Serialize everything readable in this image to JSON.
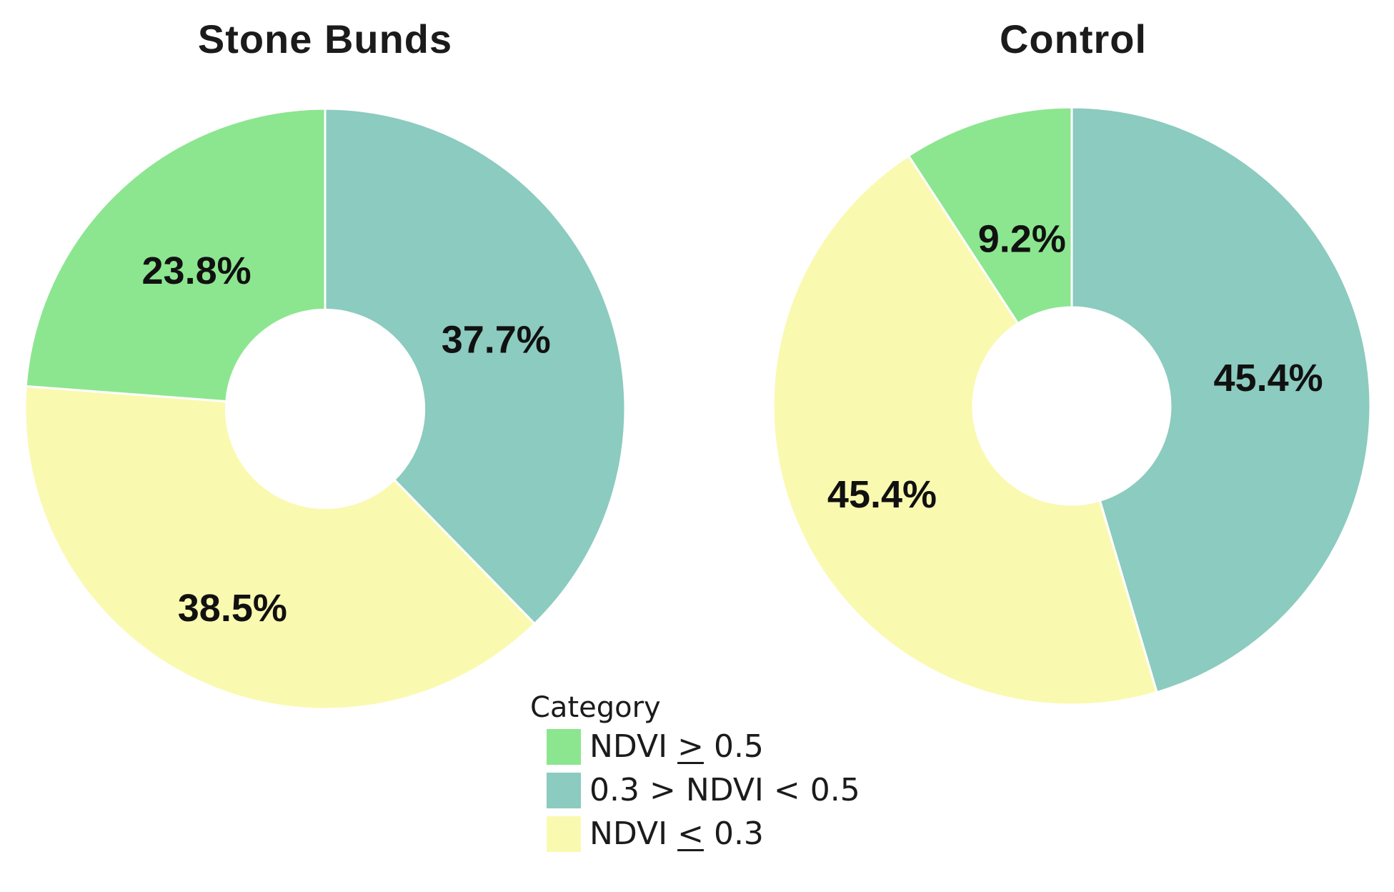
{
  "figure": {
    "background": "#ffffff",
    "text_color": "#1b1b1b"
  },
  "palette": {
    "green": "#8CE68F",
    "teal": "#8CCBBF",
    "yellow": "#FAF9B0"
  },
  "chart_data": [
    {
      "type": "pie",
      "subtype": "donut",
      "title": "Stone Bunds",
      "units": "%",
      "start_angle_deg": 0,
      "direction": "clockwise",
      "hole_ratio": 0.33,
      "slices": [
        {
          "category": "0.3 > NDVI < 0.5",
          "value": 37.7,
          "label": "37.7%",
          "color": "#8CCBBF",
          "label_r": 0.615
        },
        {
          "category": "NDVI <= 0.3",
          "value": 38.5,
          "label": "38.5%",
          "color": "#FAF9B0",
          "label_r": 0.73
        },
        {
          "category": "NDVI >= 0.5",
          "value": 23.8,
          "label": "23.8%",
          "color": "#8CE68F",
          "label_r": 0.63
        }
      ]
    },
    {
      "type": "pie",
      "subtype": "donut",
      "title": "Control",
      "units": "%",
      "start_angle_deg": 0,
      "direction": "clockwise",
      "hole_ratio": 0.33,
      "slices": [
        {
          "category": "0.3 > NDVI < 0.5",
          "value": 45.4,
          "label": "45.4%",
          "color": "#8CCBBF",
          "label_r": 0.665
        },
        {
          "category": "NDVI <= 0.3",
          "value": 45.4,
          "label": "45.4%",
          "color": "#FAF9B0",
          "label_r": 0.7
        },
        {
          "category": "NDVI >= 0.5",
          "value": 9.2,
          "label": "9.2%",
          "color": "#8CE68F",
          "label_r": 0.585
        }
      ]
    }
  ],
  "legend": {
    "title": "Category",
    "position": "bottom-center",
    "items": [
      {
        "color": "#8CE68F",
        "parts": [
          {
            "text": "NDVI "
          },
          {
            "text": ">",
            "underline": true
          },
          {
            "text": " 0.5"
          }
        ]
      },
      {
        "color": "#8CCBBF",
        "parts": [
          {
            "text": "0.3 > NDVI < 0.5"
          }
        ]
      },
      {
        "color": "#FAF9B0",
        "parts": [
          {
            "text": "NDVI "
          },
          {
            "text": "<",
            "underline": true
          },
          {
            "text": " 0.3"
          }
        ]
      }
    ]
  }
}
